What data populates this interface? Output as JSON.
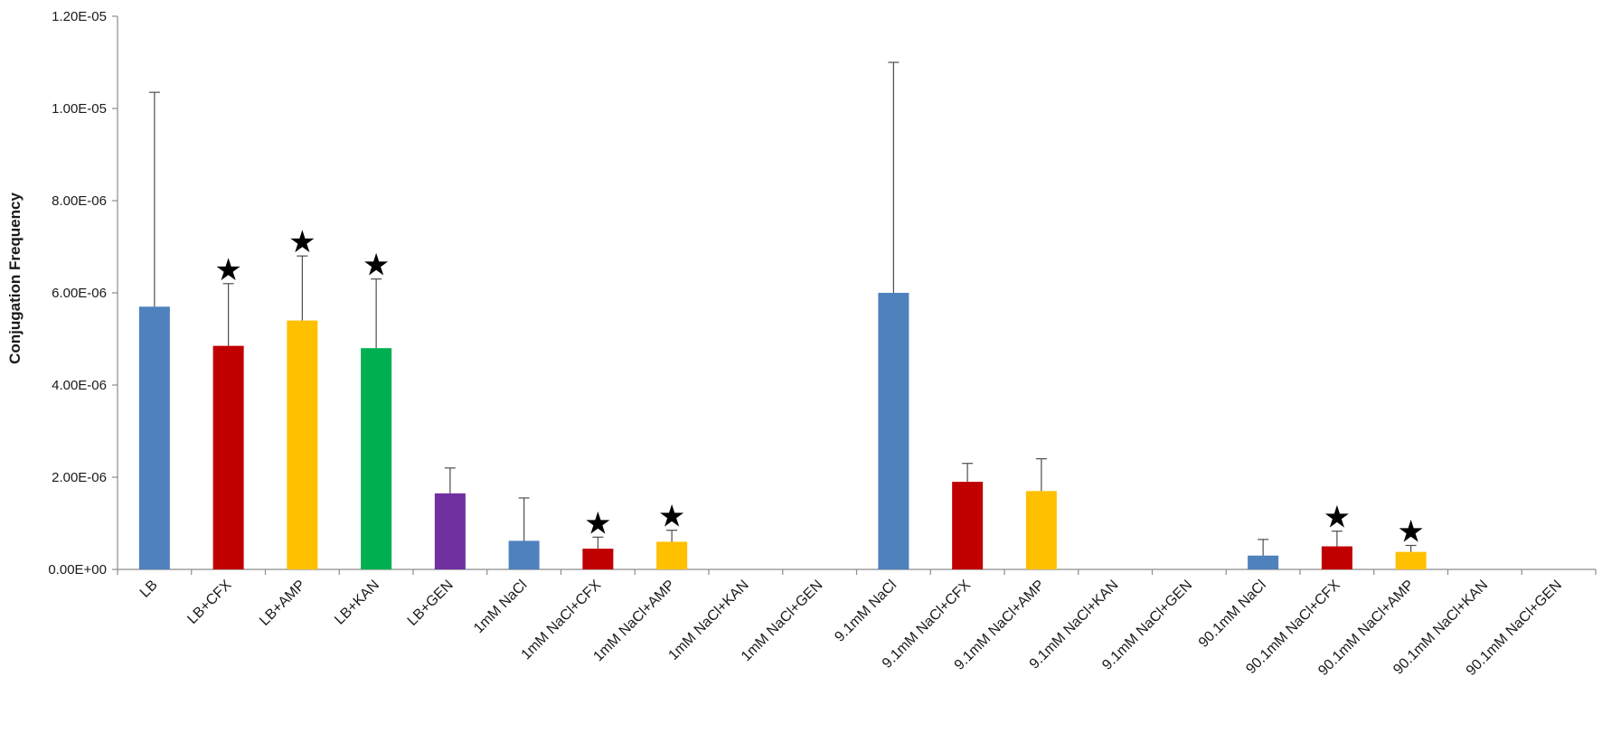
{
  "chart_data": {
    "type": "bar",
    "title": "",
    "xlabel": "",
    "ylabel": "Conjugation Frequency",
    "ylim": [
      0,
      1.2e-05
    ],
    "y_ticks": [
      "0.00E+00",
      "2.00E-06",
      "4.00E-06",
      "6.00E-06",
      "8.00E-06",
      "1.00E-05",
      "1.20E-05"
    ],
    "grid": false,
    "legend": "none",
    "categories": [
      "LB",
      "LB+CFX",
      "LB+AMP",
      "LB+KAN",
      "LB+GEN",
      "1mM NaCl",
      "1mM NaCl+CFX",
      "1mM NaCl+AMP",
      "1mM NaCl+KAN",
      "1mM NaCl+GEN",
      "9.1mM NaCl",
      "9.1mM NaCl+CFX",
      "9.1mM NaCl+AMP",
      "9.1mM NaCl+KAN",
      "9.1mM NaCl+GEN",
      "90.1mM NaCl",
      "90.1mM NaCl+CFX",
      "90.1mM NaCl+AMP",
      "90.1mM NaCl+KAN",
      "90.1mM NaCl+GEN"
    ],
    "values": [
      5.7e-06,
      4.85e-06,
      5.4e-06,
      4.8e-06,
      1.65e-06,
      6.2e-07,
      4.5e-07,
      6e-07,
      0,
      0,
      6e-06,
      1.9e-06,
      1.7e-06,
      0,
      0,
      3e-07,
      5e-07,
      3.8e-07,
      0,
      0
    ],
    "error_upper": [
      1.035e-05,
      6.2e-06,
      6.8e-06,
      6.3e-06,
      2.2e-06,
      1.55e-06,
      7e-07,
      8.5e-07,
      null,
      null,
      1.1e-05,
      2.3e-06,
      2.4e-06,
      null,
      null,
      6.5e-07,
      8.3e-07,
      5.2e-07,
      null,
      null
    ],
    "significant": [
      false,
      true,
      true,
      true,
      false,
      false,
      true,
      true,
      false,
      false,
      false,
      false,
      false,
      false,
      false,
      false,
      true,
      true,
      false,
      false
    ],
    "star_symbol": "★",
    "colors": [
      "#4f81bd",
      "#c00000",
      "#ffc000",
      "#00b050",
      "#7030a0",
      "#4f81bd",
      "#c00000",
      "#ffc000",
      "#00b050",
      "#7030a0",
      "#4f81bd",
      "#c00000",
      "#ffc000",
      "#00b050",
      "#7030a0",
      "#4f81bd",
      "#c00000",
      "#ffc000",
      "#00b050",
      "#7030a0"
    ]
  }
}
